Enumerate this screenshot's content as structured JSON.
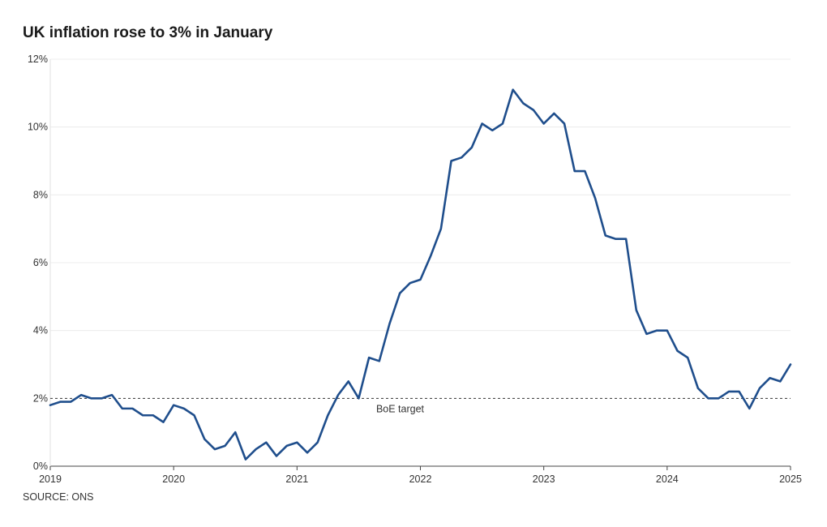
{
  "chart_data": {
    "type": "line",
    "title": "UK inflation rose to 3% in January",
    "source": "SOURCE: ONS",
    "xlabel": "",
    "ylabel": "",
    "xlim": [
      2019,
      2025
    ],
    "ylim": [
      0,
      12
    ],
    "x_ticks": [
      "2019",
      "2020",
      "2021",
      "2022",
      "2023",
      "2024",
      "2025"
    ],
    "y_ticks": [
      "0%",
      "2%",
      "4%",
      "6%",
      "8%",
      "10%",
      "12%"
    ],
    "grid": true,
    "legend": "none",
    "line_color": "#1f4e8c",
    "reference_line": {
      "value": 2,
      "label": "BoE target",
      "style": "dashed"
    },
    "series": [
      {
        "name": "",
        "x": [
          "2019-01",
          "2019-02",
          "2019-03",
          "2019-04",
          "2019-05",
          "2019-06",
          "2019-07",
          "2019-08",
          "2019-09",
          "2019-10",
          "2019-11",
          "2019-12",
          "2020-01",
          "2020-02",
          "2020-03",
          "2020-04",
          "2020-05",
          "2020-06",
          "2020-07",
          "2020-08",
          "2020-09",
          "2020-10",
          "2020-11",
          "2020-12",
          "2021-01",
          "2021-02",
          "2021-03",
          "2021-04",
          "2021-05",
          "2021-06",
          "2021-07",
          "2021-08",
          "2021-09",
          "2021-10",
          "2021-11",
          "2021-12",
          "2022-01",
          "2022-02",
          "2022-03",
          "2022-04",
          "2022-05",
          "2022-06",
          "2022-07",
          "2022-08",
          "2022-09",
          "2022-10",
          "2022-11",
          "2022-12",
          "2023-01",
          "2023-02",
          "2023-03",
          "2023-04",
          "2023-05",
          "2023-06",
          "2023-07",
          "2023-08",
          "2023-09",
          "2023-10",
          "2023-11",
          "2023-12",
          "2024-01",
          "2024-02",
          "2024-03",
          "2024-04",
          "2024-05",
          "2024-06",
          "2024-07",
          "2024-08",
          "2024-09",
          "2024-10",
          "2024-11",
          "2024-12",
          "2025-01"
        ],
        "values": [
          1.8,
          1.9,
          1.9,
          2.1,
          2.0,
          2.0,
          2.1,
          1.7,
          1.7,
          1.5,
          1.5,
          1.3,
          1.8,
          1.7,
          1.5,
          0.8,
          0.5,
          0.6,
          1.0,
          0.2,
          0.5,
          0.7,
          0.3,
          0.6,
          0.7,
          0.4,
          0.7,
          1.5,
          2.1,
          2.5,
          2.0,
          3.2,
          3.1,
          4.2,
          5.1,
          5.4,
          5.5,
          6.2,
          7.0,
          9.0,
          9.1,
          9.4,
          10.1,
          9.9,
          10.1,
          11.1,
          10.7,
          10.5,
          10.1,
          10.4,
          10.1,
          8.7,
          8.7,
          7.9,
          6.8,
          6.7,
          6.7,
          4.6,
          3.9,
          4.0,
          4.0,
          3.4,
          3.2,
          2.3,
          2.0,
          2.0,
          2.2,
          2.2,
          1.7,
          2.3,
          2.6,
          2.5,
          3.0
        ]
      }
    ]
  }
}
